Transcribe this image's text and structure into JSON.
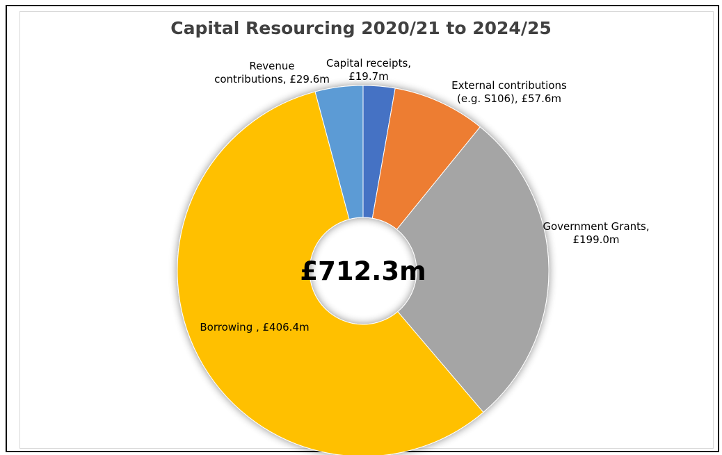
{
  "chart_data": {
    "type": "pie",
    "title": "Capital Resourcing 2020/21 to 2024/25",
    "center_label": "£712.3m",
    "legend": "none",
    "slices": [
      {
        "label_lines": [
          "Capital receipts,",
          "£19.7m"
        ],
        "value": 19.7,
        "color": "#4472c4"
      },
      {
        "label_lines": [
          "External contributions",
          "(e.g. S106), £57.6m"
        ],
        "value": 57.6,
        "color": "#ed7d31"
      },
      {
        "label_lines": [
          "Government Grants,",
          "£199.0m"
        ],
        "value": 199.0,
        "color": "#a5a5a5"
      },
      {
        "label_lines": [
          "Borrowing , £406.4m"
        ],
        "value": 406.4,
        "color": "#ffc000"
      },
      {
        "label_lines": [
          "Revenue",
          "contributions, £29.6m"
        ],
        "value": 29.6,
        "color": "#5b9bd5"
      }
    ]
  }
}
